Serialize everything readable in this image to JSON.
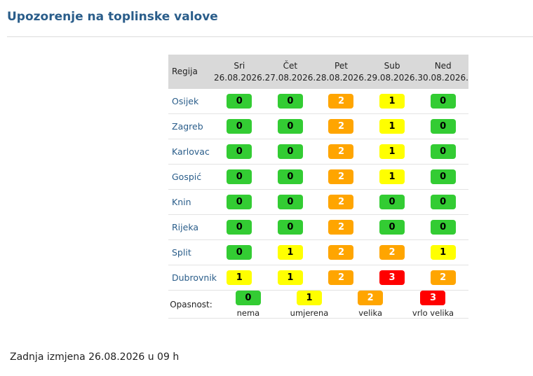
{
  "page": {
    "title": "Upozorenje na toplinske valove"
  },
  "table": {
    "region_header": "Regija",
    "days": [
      {
        "name": "Sri",
        "date": "26.08.2026."
      },
      {
        "name": "Čet",
        "date": "27.08.2026."
      },
      {
        "name": "Pet",
        "date": "28.08.2026."
      },
      {
        "name": "Sub",
        "date": "29.08.2026."
      },
      {
        "name": "Ned",
        "date": "30.08.2026."
      }
    ],
    "rows": [
      {
        "city": "Osijek",
        "levels": [
          "0",
          "0",
          "2",
          "1",
          "0"
        ]
      },
      {
        "city": "Zagreb",
        "levels": [
          "0",
          "0",
          "2",
          "1",
          "0"
        ]
      },
      {
        "city": "Karlovac",
        "levels": [
          "0",
          "0",
          "2",
          "1",
          "0"
        ]
      },
      {
        "city": "Gospić",
        "levels": [
          "0",
          "0",
          "2",
          "1",
          "0"
        ]
      },
      {
        "city": "Knin",
        "levels": [
          "0",
          "0",
          "2",
          "0",
          "0"
        ]
      },
      {
        "city": "Rijeka",
        "levels": [
          "0",
          "0",
          "2",
          "0",
          "0"
        ]
      },
      {
        "city": "Split",
        "levels": [
          "0",
          "1",
          "2",
          "2",
          "1"
        ]
      },
      {
        "city": "Dubrovnik",
        "levels": [
          "1",
          "1",
          "2",
          "3",
          "2"
        ]
      }
    ]
  },
  "legend": {
    "label": "Opasnost:",
    "items": [
      {
        "level": "0",
        "caption": "nema"
      },
      {
        "level": "1",
        "caption": "umjerena"
      },
      {
        "level": "2",
        "caption": "velika"
      },
      {
        "level": "3",
        "caption": "vrlo velika"
      }
    ]
  },
  "colors": {
    "0": "#33cc33",
    "1": "#ffff00",
    "2": "#ffa500",
    "3": "#ff0000"
  },
  "footer": {
    "text": "Zadnja izmjena 26.08.2026 u 09 h"
  }
}
